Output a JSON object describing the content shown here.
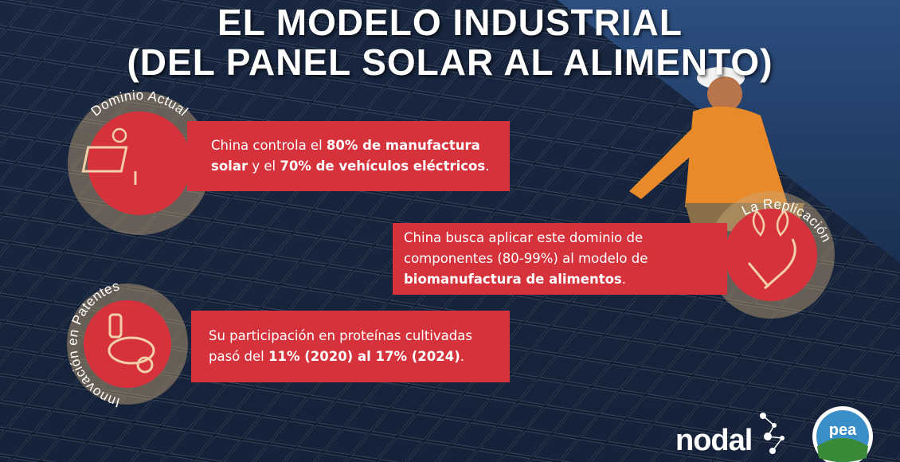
{
  "title": {
    "lines": [
      "EL MODELO INDUSTRIAL",
      "(DEL PANEL SOLAR AL ALIMENTO)"
    ]
  },
  "items": [
    {
      "label": "Dominio Actual",
      "segments": [
        {
          "text": "China controla el ",
          "bold": false
        },
        {
          "text": "80% de manufactura solar",
          "bold": true
        },
        {
          "text": " y el ",
          "bold": false
        },
        {
          "text": "70% de vehículos eléctricos",
          "bold": true
        },
        {
          "text": ".",
          "bold": false
        }
      ]
    },
    {
      "label": "La Replicación",
      "segments": [
        {
          "text": "China busca aplicar este dominio de componentes (80-99%) al modelo de ",
          "bold": false
        },
        {
          "text": "biomanufactura de alimentos",
          "bold": true
        },
        {
          "text": ".",
          "bold": false
        }
      ]
    },
    {
      "label": "Innovación en Patentes",
      "segments": [
        {
          "text": "Su participación en proteínas cultivadas pasó del ",
          "bold": false
        },
        {
          "text": "11% (2020) al 17% (2024)",
          "bold": true
        },
        {
          "text": ".",
          "bold": false
        }
      ]
    }
  ],
  "logos": {
    "nodal": "nodal",
    "pea": "pea"
  }
}
